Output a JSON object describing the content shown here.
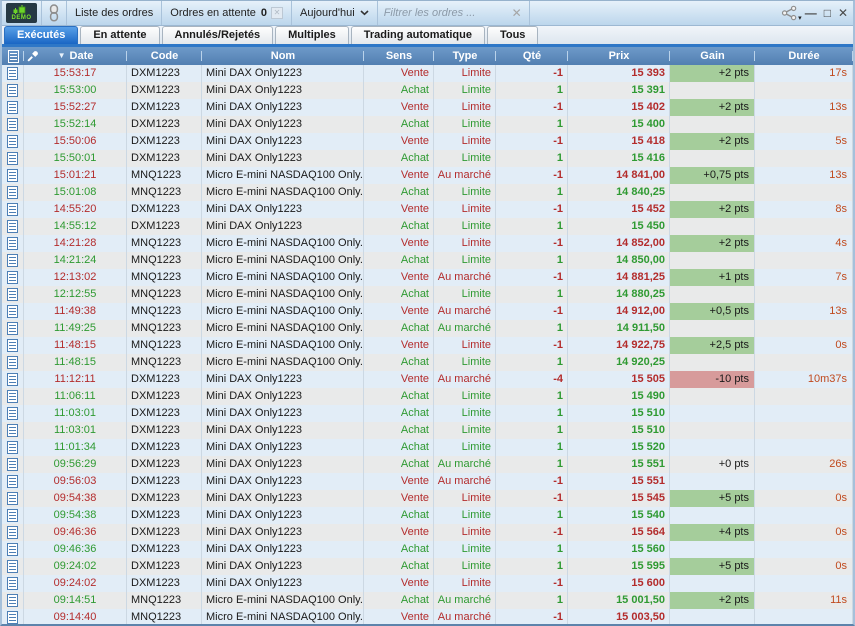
{
  "titlebar": {
    "demo_label": "DEMO",
    "orders_list_button": "Liste des ordres",
    "pending_orders_button": "Ordres en attente",
    "pending_orders_count": "0",
    "period_selector": "Aujourd'hui",
    "filter_placeholder": "Filtrer les ordres ...",
    "filter_clear": "✕",
    "window_controls": {
      "minimize": "—",
      "maximize": "□",
      "close": "✕"
    }
  },
  "tabs": [
    {
      "label": "Exécutés",
      "active": true
    },
    {
      "label": "En attente",
      "active": false
    },
    {
      "label": "Annulés/Rejetés",
      "active": false
    },
    {
      "label": "Multiples",
      "active": false
    },
    {
      "label": "Trading automatique",
      "active": false
    },
    {
      "label": "Tous",
      "active": false
    }
  ],
  "table": {
    "sort_indicator": "▼",
    "columns": [
      "Date",
      "Code",
      "Nom",
      "Sens",
      "Type",
      "Qté",
      "Prix",
      "Gain",
      "Durée"
    ],
    "rows": [
      {
        "time": "15:53:17",
        "code": "DXM1223",
        "name": "Mini DAX Only1223",
        "side": "vente",
        "sens": "Vente",
        "type": "Limite",
        "qty": "-1",
        "price": "15 393",
        "gain": "+2 pts",
        "gain_bg": "green",
        "duration": "17s"
      },
      {
        "time": "15:53:00",
        "code": "DXM1223",
        "name": "Mini DAX Only1223",
        "side": "achat",
        "sens": "Achat",
        "type": "Limite",
        "qty": "1",
        "price": "15 391",
        "gain": "",
        "gain_bg": "none",
        "duration": ""
      },
      {
        "time": "15:52:27",
        "code": "DXM1223",
        "name": "Mini DAX Only1223",
        "side": "vente",
        "sens": "Vente",
        "type": "Limite",
        "qty": "-1",
        "price": "15 402",
        "gain": "+2 pts",
        "gain_bg": "green",
        "duration": "13s"
      },
      {
        "time": "15:52:14",
        "code": "DXM1223",
        "name": "Mini DAX Only1223",
        "side": "achat",
        "sens": "Achat",
        "type": "Limite",
        "qty": "1",
        "price": "15 400",
        "gain": "",
        "gain_bg": "none",
        "duration": ""
      },
      {
        "time": "15:50:06",
        "code": "DXM1223",
        "name": "Mini DAX Only1223",
        "side": "vente",
        "sens": "Vente",
        "type": "Limite",
        "qty": "-1",
        "price": "15 418",
        "gain": "+2 pts",
        "gain_bg": "green",
        "duration": "5s"
      },
      {
        "time": "15:50:01",
        "code": "DXM1223",
        "name": "Mini DAX Only1223",
        "side": "achat",
        "sens": "Achat",
        "type": "Limite",
        "qty": "1",
        "price": "15 416",
        "gain": "",
        "gain_bg": "none",
        "duration": ""
      },
      {
        "time": "15:01:21",
        "code": "MNQ1223",
        "name": "Micro E-mini NASDAQ100 Only...",
        "side": "vente",
        "sens": "Vente",
        "type": "Au marché",
        "qty": "-1",
        "price": "14 841,00",
        "gain": "+0,75 pts",
        "gain_bg": "green",
        "duration": "13s"
      },
      {
        "time": "15:01:08",
        "code": "MNQ1223",
        "name": "Micro E-mini NASDAQ100 Only...",
        "side": "achat",
        "sens": "Achat",
        "type": "Limite",
        "qty": "1",
        "price": "14 840,25",
        "gain": "",
        "gain_bg": "none",
        "duration": ""
      },
      {
        "time": "14:55:20",
        "code": "DXM1223",
        "name": "Mini DAX Only1223",
        "side": "vente",
        "sens": "Vente",
        "type": "Limite",
        "qty": "-1",
        "price": "15 452",
        "gain": "+2 pts",
        "gain_bg": "green",
        "duration": "8s"
      },
      {
        "time": "14:55:12",
        "code": "DXM1223",
        "name": "Mini DAX Only1223",
        "side": "achat",
        "sens": "Achat",
        "type": "Limite",
        "qty": "1",
        "price": "15 450",
        "gain": "",
        "gain_bg": "none",
        "duration": ""
      },
      {
        "time": "14:21:28",
        "code": "MNQ1223",
        "name": "Micro E-mini NASDAQ100 Only...",
        "side": "vente",
        "sens": "Vente",
        "type": "Limite",
        "qty": "-1",
        "price": "14 852,00",
        "gain": "+2 pts",
        "gain_bg": "green",
        "duration": "4s"
      },
      {
        "time": "14:21:24",
        "code": "MNQ1223",
        "name": "Micro E-mini NASDAQ100 Only...",
        "side": "achat",
        "sens": "Achat",
        "type": "Limite",
        "qty": "1",
        "price": "14 850,00",
        "gain": "",
        "gain_bg": "none",
        "duration": ""
      },
      {
        "time": "12:13:02",
        "code": "MNQ1223",
        "name": "Micro E-mini NASDAQ100 Only...",
        "side": "vente",
        "sens": "Vente",
        "type": "Au marché",
        "qty": "-1",
        "price": "14 881,25",
        "gain": "+1 pts",
        "gain_bg": "green",
        "duration": "7s"
      },
      {
        "time": "12:12:55",
        "code": "MNQ1223",
        "name": "Micro E-mini NASDAQ100 Only...",
        "side": "achat",
        "sens": "Achat",
        "type": "Limite",
        "qty": "1",
        "price": "14 880,25",
        "gain": "",
        "gain_bg": "none",
        "duration": ""
      },
      {
        "time": "11:49:38",
        "code": "MNQ1223",
        "name": "Micro E-mini NASDAQ100 Only...",
        "side": "vente",
        "sens": "Vente",
        "type": "Au marché",
        "qty": "-1",
        "price": "14 912,00",
        "gain": "+0,5 pts",
        "gain_bg": "green",
        "duration": "13s"
      },
      {
        "time": "11:49:25",
        "code": "MNQ1223",
        "name": "Micro E-mini NASDAQ100 Only...",
        "side": "achat",
        "sens": "Achat",
        "type": "Au marché",
        "qty": "1",
        "price": "14 911,50",
        "gain": "",
        "gain_bg": "none",
        "duration": ""
      },
      {
        "time": "11:48:15",
        "code": "MNQ1223",
        "name": "Micro E-mini NASDAQ100 Only...",
        "side": "vente",
        "sens": "Vente",
        "type": "Limite",
        "qty": "-1",
        "price": "14 922,75",
        "gain": "+2,5 pts",
        "gain_bg": "green",
        "duration": "0s"
      },
      {
        "time": "11:48:15",
        "code": "MNQ1223",
        "name": "Micro E-mini NASDAQ100 Only...",
        "side": "achat",
        "sens": "Achat",
        "type": "Limite",
        "qty": "1",
        "price": "14 920,25",
        "gain": "",
        "gain_bg": "none",
        "duration": ""
      },
      {
        "time": "11:12:11",
        "code": "DXM1223",
        "name": "Mini DAX Only1223",
        "side": "vente",
        "sens": "Vente",
        "type": "Au marché",
        "qty": "-4",
        "price": "15 505",
        "gain": "-10 pts",
        "gain_bg": "red",
        "duration": "10m37s"
      },
      {
        "time": "11:06:11",
        "code": "DXM1223",
        "name": "Mini DAX Only1223",
        "side": "achat",
        "sens": "Achat",
        "type": "Limite",
        "qty": "1",
        "price": "15 490",
        "gain": "",
        "gain_bg": "none",
        "duration": ""
      },
      {
        "time": "11:03:01",
        "code": "DXM1223",
        "name": "Mini DAX Only1223",
        "side": "achat",
        "sens": "Achat",
        "type": "Limite",
        "qty": "1",
        "price": "15 510",
        "gain": "",
        "gain_bg": "none",
        "duration": ""
      },
      {
        "time": "11:03:01",
        "code": "DXM1223",
        "name": "Mini DAX Only1223",
        "side": "achat",
        "sens": "Achat",
        "type": "Limite",
        "qty": "1",
        "price": "15 510",
        "gain": "",
        "gain_bg": "none",
        "duration": ""
      },
      {
        "time": "11:01:34",
        "code": "DXM1223",
        "name": "Mini DAX Only1223",
        "side": "achat",
        "sens": "Achat",
        "type": "Limite",
        "qty": "1",
        "price": "15 520",
        "gain": "",
        "gain_bg": "none",
        "duration": ""
      },
      {
        "time": "09:56:29",
        "code": "DXM1223",
        "name": "Mini DAX Only1223",
        "side": "achat",
        "sens": "Achat",
        "type": "Au marché",
        "qty": "1",
        "price": "15 551",
        "gain": "+0 pts",
        "gain_bg": "none",
        "duration": "26s"
      },
      {
        "time": "09:56:03",
        "code": "DXM1223",
        "name": "Mini DAX Only1223",
        "side": "vente",
        "sens": "Vente",
        "type": "Au marché",
        "qty": "-1",
        "price": "15 551",
        "gain": "",
        "gain_bg": "none",
        "duration": ""
      },
      {
        "time": "09:54:38",
        "code": "DXM1223",
        "name": "Mini DAX Only1223",
        "side": "vente",
        "sens": "Vente",
        "type": "Limite",
        "qty": "-1",
        "price": "15 545",
        "gain": "+5 pts",
        "gain_bg": "green",
        "duration": "0s"
      },
      {
        "time": "09:54:38",
        "code": "DXM1223",
        "name": "Mini DAX Only1223",
        "side": "achat",
        "sens": "Achat",
        "type": "Limite",
        "qty": "1",
        "price": "15 540",
        "gain": "",
        "gain_bg": "none",
        "duration": ""
      },
      {
        "time": "09:46:36",
        "code": "DXM1223",
        "name": "Mini DAX Only1223",
        "side": "vente",
        "sens": "Vente",
        "type": "Limite",
        "qty": "-1",
        "price": "15 564",
        "gain": "+4 pts",
        "gain_bg": "green",
        "duration": "0s"
      },
      {
        "time": "09:46:36",
        "code": "DXM1223",
        "name": "Mini DAX Only1223",
        "side": "achat",
        "sens": "Achat",
        "type": "Limite",
        "qty": "1",
        "price": "15 560",
        "gain": "",
        "gain_bg": "none",
        "duration": ""
      },
      {
        "time": "09:24:02",
        "code": "DXM1223",
        "name": "Mini DAX Only1223",
        "side": "achat",
        "sens": "Achat",
        "type": "Limite",
        "qty": "1",
        "price": "15 595",
        "gain": "+5 pts",
        "gain_bg": "green",
        "duration": "0s"
      },
      {
        "time": "09:24:02",
        "code": "DXM1223",
        "name": "Mini DAX Only1223",
        "side": "vente",
        "sens": "Vente",
        "type": "Limite",
        "qty": "-1",
        "price": "15 600",
        "gain": "",
        "gain_bg": "none",
        "duration": ""
      },
      {
        "time": "09:14:51",
        "code": "MNQ1223",
        "name": "Micro E-mini NASDAQ100 Only...",
        "side": "achat",
        "sens": "Achat",
        "type": "Au marché",
        "qty": "1",
        "price": "15 001,50",
        "gain": "+2 pts",
        "gain_bg": "green",
        "duration": "11s"
      },
      {
        "time": "09:14:40",
        "code": "MNQ1223",
        "name": "Micro E-mini NASDAQ100 Only...",
        "side": "vente",
        "sens": "Vente",
        "type": "Au marché",
        "qty": "-1",
        "price": "15 003,50",
        "gain": "",
        "gain_bg": "none",
        "duration": ""
      }
    ]
  },
  "colors": {
    "buy": "#2f9a32",
    "sell": "#b32c2c",
    "duration": "#c04a1e",
    "gain_positive_bg": "#a5cd9b",
    "gain_negative_bg": "#d79b9b",
    "header_bg": "#6e9ac9",
    "active_tab": "#2e77c7"
  }
}
